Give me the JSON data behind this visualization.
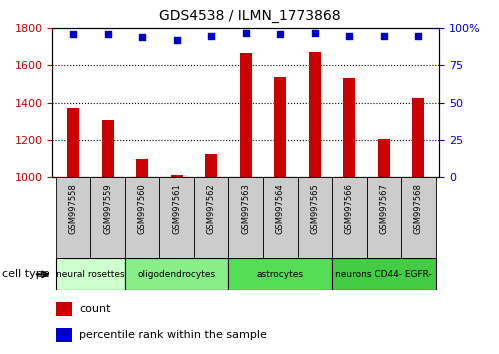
{
  "title": "GDS4538 / ILMN_1773868",
  "samples": [
    "GSM997558",
    "GSM997559",
    "GSM997560",
    "GSM997561",
    "GSM997562",
    "GSM997563",
    "GSM997564",
    "GSM997565",
    "GSM997566",
    "GSM997567",
    "GSM997568"
  ],
  "counts": [
    1370,
    1305,
    1095,
    1010,
    1125,
    1665,
    1540,
    1670,
    1530,
    1205,
    1425
  ],
  "percentiles": [
    96,
    96,
    94,
    92,
    95,
    97,
    96,
    97,
    95,
    95,
    95
  ],
  "ylim_left": [
    1000,
    1800
  ],
  "ylim_right": [
    0,
    100
  ],
  "yticks_left": [
    1000,
    1200,
    1400,
    1600,
    1800
  ],
  "yticks_right": [
    0,
    25,
    50,
    75,
    100
  ],
  "bar_color": "#cc0000",
  "dot_color": "#0000cc",
  "cell_types": [
    {
      "label": "neural rosettes",
      "start": 0,
      "end": 2,
      "color": "#ccffcc"
    },
    {
      "label": "oligodendrocytes",
      "start": 2,
      "end": 5,
      "color": "#88ee88"
    },
    {
      "label": "astrocytes",
      "start": 5,
      "end": 8,
      "color": "#55dd55"
    },
    {
      "label": "neurons CD44- EGFR-",
      "start": 8,
      "end": 11,
      "color": "#44cc44"
    }
  ],
  "cell_type_label": "cell type",
  "legend_count_label": "count",
  "legend_percentile_label": "percentile rank within the sample",
  "background_color": "#ffffff",
  "ylabel_left_color": "#cc0000",
  "ylabel_right_color": "#0000cc",
  "sample_box_color": "#cccccc",
  "right_ytick_labels": [
    "0",
    "25",
    "50",
    "75",
    "100%"
  ]
}
